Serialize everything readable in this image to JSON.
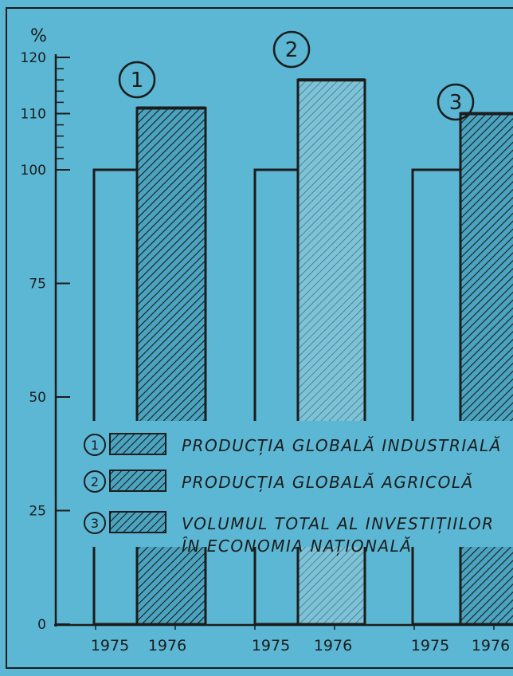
{
  "chart_data": {
    "type": "bar",
    "yaxis_unit": "%",
    "yticks": [
      0,
      25,
      50,
      75,
      100,
      110,
      120
    ],
    "ylim": [
      0,
      120
    ],
    "x_tick_labels": [
      "1975",
      "1976",
      "1975",
      "1976",
      "1975",
      "1976"
    ],
    "groups": [
      {
        "marker": "1",
        "categories": [
          "1975",
          "1976"
        ],
        "values": [
          100,
          111
        ]
      },
      {
        "marker": "2",
        "categories": [
          "1975",
          "1976"
        ],
        "values": [
          100,
          116
        ]
      },
      {
        "marker": "3",
        "categories": [
          "1975",
          "1976"
        ],
        "values": [
          100,
          110
        ]
      }
    ],
    "legend": [
      {
        "marker": "1",
        "label": "PRODUCȚIA GLOBALĂ INDUSTRIALĂ"
      },
      {
        "marker": "2",
        "label": "PRODUCȚIA GLOBALĂ AGRICOLĂ"
      },
      {
        "marker": "3",
        "label": "VOLUMUL TOTAL AL INVESTIȚIILOR",
        "label_line2": "ÎN ECONOMIA NAȚIONALĂ"
      }
    ],
    "colors": {
      "background": "#5bb7d3",
      "ink": "#1c1c1c",
      "hatch_base": "#4aa4c0",
      "agri_fill": "#7dc2d6"
    }
  }
}
